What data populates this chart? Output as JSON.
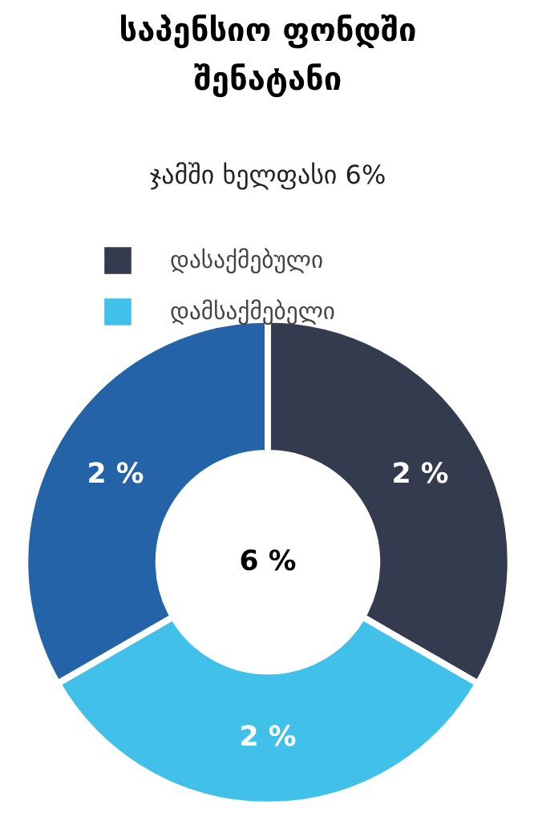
{
  "chart_data": {
    "type": "donut",
    "title": "საპენსიო ფონდში შენატანი",
    "subtitle": "ჯამში ხელფასი 6%",
    "categories": [
      "დასაქმებული",
      "დამსაქმებელი",
      null
    ],
    "values": [
      2,
      2,
      2
    ],
    "colors": [
      "#343b4e",
      "#41c0e9",
      "#2563a9"
    ],
    "value_labels": [
      "2 %",
      "2 %",
      "2 %"
    ],
    "annotations": [
      "6 %"
    ],
    "legend": "top"
  }
}
